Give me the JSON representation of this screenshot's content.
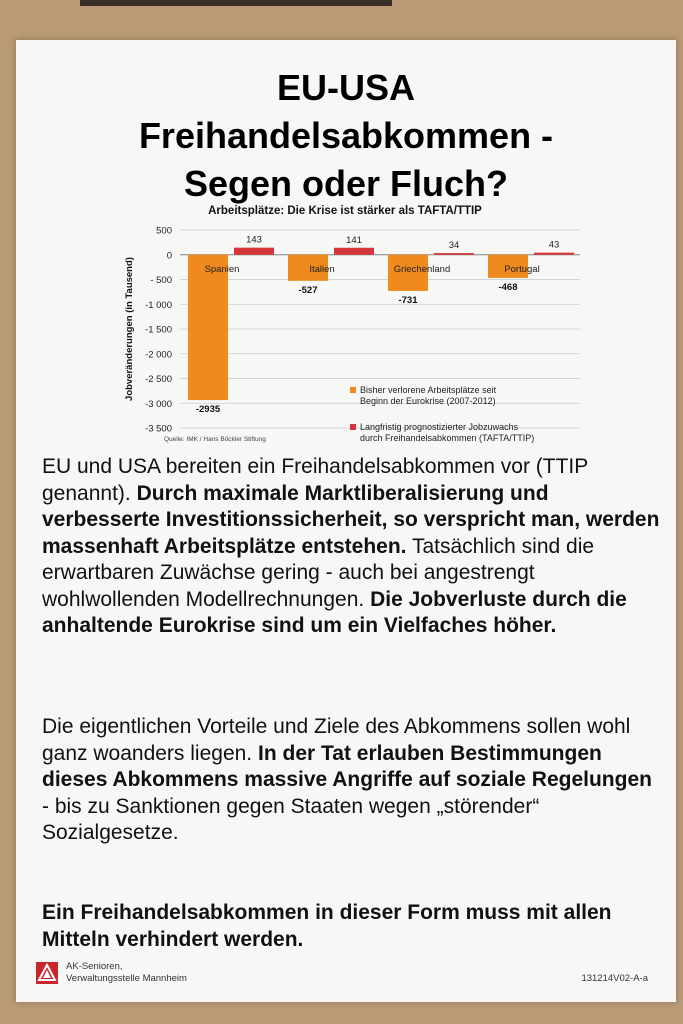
{
  "poster": {
    "title_lines": [
      "EU-USA",
      "Freihandelsabkommen -",
      "Segen oder Fluch?"
    ],
    "paragraph1": {
      "t1": "EU und USA bereiten ein Freihandelsabkommen vor (TTIP genannt).",
      "b1": "Durch maximale Marktliberalisierung und verbesserte Investitionssicherheit, so verspricht man, werden massenhaft Arbeitsplätze entstehen.",
      "t2": "Tatsächlich sind die erwartbaren Zuwächse gering - auch bei angestrengt wohlwollenden Modellrechnungen.",
      "b2": "Die Jobverluste durch die anhaltende Eurokrise sind um ein Vielfaches höher."
    },
    "paragraph2": {
      "t1": "Die eigentlichen Vorteile und Ziele des Abkommens sollen wohl ganz woanders liegen.",
      "b1": "In der Tat erlauben Bestimmungen dieses Abkommens massive Angriffe auf soziale Regelungen",
      "t2": "- bis zu Sanktionen gegen Staaten wegen „störender“ Sozialgesetze."
    },
    "paragraph3": "Ein Freihandelsabkommen in dieser Form muss mit allen Mitteln verhindert werden.",
    "footer": {
      "org_line1": "AK-Senioren,",
      "org_line2": "Verwaltungsstelle Mannheim",
      "code": "131214V02-A-a"
    }
  },
  "colors": {
    "loss": "#ee8a1e",
    "gain": "#d6363b",
    "grid": "#c9c9c9",
    "logo": "#c8262c"
  },
  "chart_data": {
    "type": "bar",
    "title": "Arbeitsplätze: Die Krise ist stärker als TAFTA/TTIP",
    "ylabel": "Jobveränderungen (in Tausend)",
    "xlabel": "",
    "ylim": [
      -3500,
      500
    ],
    "yticks": [
      500,
      0,
      -500,
      -1000,
      -1500,
      -2000,
      -2500,
      -3000,
      -3500
    ],
    "ytick_labels": [
      "500",
      "0",
      "- 500",
      "-1 000",
      "-1 500",
      "-2 000",
      "-2 500",
      "-3 000",
      "-3 500"
    ],
    "categories": [
      "Spanien",
      "Italien",
      "Griechenland",
      "Portugal"
    ],
    "series": [
      {
        "name": "Bisher verlorene Arbeitsplätze seit Beginn der Eurokrise (2007-2012)",
        "values": [
          -2935,
          -527,
          -731,
          -468
        ]
      },
      {
        "name": "Langfristig prognostizierter Jobzuwachs durch Freihandelsabkommen (TAFTA/TTIP)",
        "values": [
          143,
          141,
          34,
          43
        ]
      }
    ],
    "source": "Quelle: IMK / Hans Böckler Stiftung",
    "grid": true,
    "legend": "bottom-right"
  }
}
